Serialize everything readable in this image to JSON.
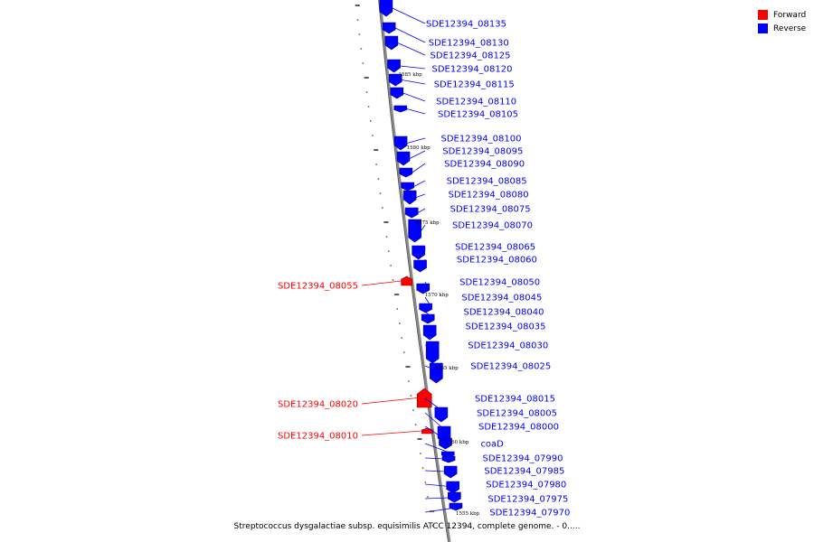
{
  "legend": {
    "forward": {
      "label": "Forward",
      "color": "#ff0000"
    },
    "reverse": {
      "label": "Reverse",
      "color": "#0000ff"
    }
  },
  "caption": "Streptococcus dysgalactiae subsp. equisimilis ATCC 12394, complete genome. - 0.....",
  "scale_ticks": [
    "1585 kbp",
    "1580 kbp",
    "1575 kbp",
    "1570 kbp",
    "1565 kbp",
    "1560 kbp",
    "1555 kbp"
  ],
  "genes": [
    {
      "name": "SDE12394_08135",
      "strand": "reverse"
    },
    {
      "name": "SDE12394_08130",
      "strand": "reverse"
    },
    {
      "name": "SDE12394_08125",
      "strand": "reverse"
    },
    {
      "name": "SDE12394_08120",
      "strand": "reverse"
    },
    {
      "name": "SDE12394_08115",
      "strand": "reverse"
    },
    {
      "name": "SDE12394_08110",
      "strand": "reverse"
    },
    {
      "name": "SDE12394_08105",
      "strand": "reverse"
    },
    {
      "name": "SDE12394_08100",
      "strand": "reverse"
    },
    {
      "name": "SDE12394_08095",
      "strand": "reverse"
    },
    {
      "name": "SDE12394_08090",
      "strand": "reverse"
    },
    {
      "name": "SDE12394_08085",
      "strand": "reverse"
    },
    {
      "name": "SDE12394_08080",
      "strand": "reverse"
    },
    {
      "name": "SDE12394_08075",
      "strand": "reverse"
    },
    {
      "name": "SDE12394_08070",
      "strand": "reverse"
    },
    {
      "name": "SDE12394_08065",
      "strand": "reverse"
    },
    {
      "name": "SDE12394_08060",
      "strand": "reverse"
    },
    {
      "name": "SDE12394_08055",
      "strand": "forward"
    },
    {
      "name": "SDE12394_08050",
      "strand": "reverse"
    },
    {
      "name": "SDE12394_08045",
      "strand": "reverse"
    },
    {
      "name": "SDE12394_08040",
      "strand": "reverse"
    },
    {
      "name": "SDE12394_08035",
      "strand": "reverse"
    },
    {
      "name": "SDE12394_08030",
      "strand": "reverse"
    },
    {
      "name": "SDE12394_08025",
      "strand": "reverse"
    },
    {
      "name": "SDE12394_08020",
      "strand": "forward"
    },
    {
      "name": "SDE12394_08015",
      "strand": "reverse"
    },
    {
      "name": "SDE12394_08010",
      "strand": "forward"
    },
    {
      "name": "SDE12394_08005",
      "strand": "reverse"
    },
    {
      "name": "SDE12394_08000",
      "strand": "reverse"
    },
    {
      "name": "coaD",
      "strand": "reverse"
    },
    {
      "name": "SDE12394_07990",
      "strand": "reverse"
    },
    {
      "name": "SDE12394_07985",
      "strand": "reverse"
    },
    {
      "name": "SDE12394_07980",
      "strand": "reverse"
    },
    {
      "name": "SDE12394_07975",
      "strand": "reverse"
    },
    {
      "name": "SDE12394_07970",
      "strand": "reverse"
    }
  ]
}
